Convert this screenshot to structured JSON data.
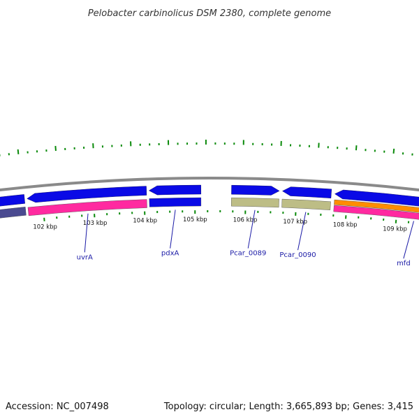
{
  "title": "Pelobacter carbinolicus DSM 2380, complete genome",
  "footer": {
    "accession": "Accession: NC_007498",
    "summary": "Topology: circular; Length: 3,665,893 bp; Genes: 3,415"
  },
  "colors": {
    "backbone": "#8a8a8a",
    "gene_blue": "#0a0ae6",
    "rna_pink": "#ff2aa0",
    "misc_olive": "#bdbd86",
    "orange": "#ff8c00",
    "tick_green": "#0a8a0a",
    "label_blue": "#1a1aa6"
  },
  "kbp_ticks": [
    {
      "kb": 102,
      "label": "102 kbp"
    },
    {
      "kb": 103,
      "label": "103 kbp"
    },
    {
      "kb": 104,
      "label": "104 kbp"
    },
    {
      "kb": 105,
      "label": "105 kbp"
    },
    {
      "kb": 106,
      "label": "106 kbp"
    },
    {
      "kb": 107,
      "label": "107 kbp"
    },
    {
      "kb": 108,
      "label": "108 kbp"
    },
    {
      "kb": 109,
      "label": "109 kbp"
    }
  ],
  "genes": [
    {
      "name": "",
      "start_kb": 100.9,
      "end_kb": 101.65,
      "strand": -1,
      "color": "#0a0ae6"
    },
    {
      "name": "uvrA",
      "start_kb": 101.7,
      "end_kb": 104.05,
      "strand": -1,
      "color": "#0a0ae6"
    },
    {
      "name": "pdxA",
      "start_kb": 104.1,
      "end_kb": 105.12,
      "strand": -1,
      "color": "#0a0ae6"
    },
    {
      "name": "Pcar_0089",
      "start_kb": 105.72,
      "end_kb": 106.66,
      "strand": 1,
      "color": "#0a0ae6"
    },
    {
      "name": "Pcar_0090",
      "start_kb": 106.72,
      "end_kb": 107.68,
      "strand": -1,
      "color": "#0a0ae6"
    },
    {
      "name": "mfd",
      "start_kb": 107.75,
      "end_kb": 111.0,
      "strand": -1,
      "color": "#0a0ae6"
    }
  ],
  "lower_features": [
    {
      "start_kb": 100.9,
      "end_kb": 101.65,
      "color": "#4a4a90"
    },
    {
      "start_kb": 101.7,
      "end_kb": 104.05,
      "color": "#ff2aa0"
    },
    {
      "start_kb": 104.1,
      "end_kb": 105.12,
      "color": "#0a0ae6"
    },
    {
      "start_kb": 105.72,
      "end_kb": 106.66,
      "color": "#bdbd86"
    },
    {
      "start_kb": 106.72,
      "end_kb": 107.68,
      "color": "#bdbd86"
    },
    {
      "start_kb": 107.75,
      "end_kb": 111.0,
      "color": "#ff8c00"
    },
    {
      "start_kb": 107.75,
      "end_kb": 111.0,
      "color": "#ff2aa0"
    }
  ]
}
